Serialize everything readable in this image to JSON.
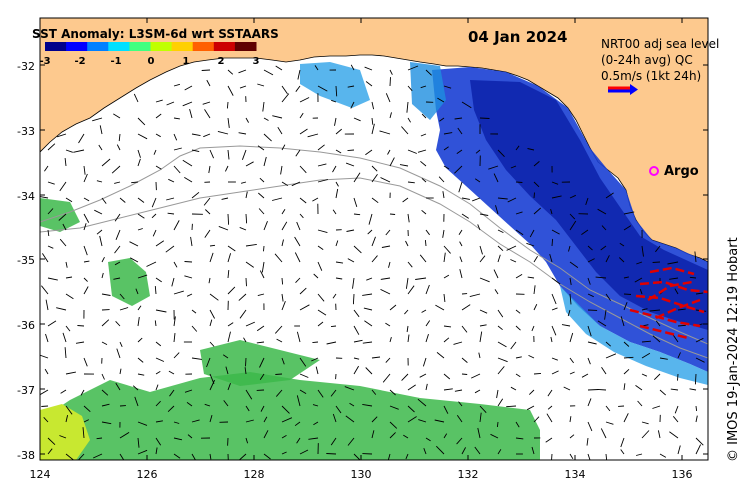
{
  "title": "SST Anomaly: L3SM-6d wrt SSTAARS",
  "date": "04 Jan 2024",
  "colorbar": {
    "ticks": [
      "-3",
      "-2",
      "-1",
      "0",
      "1",
      "2",
      "3"
    ],
    "colors": [
      "#00008b",
      "#0000ff",
      "#0080ff",
      "#00e0ff",
      "#40ff80",
      "#c0ff00",
      "#ffd000",
      "#ff6000",
      "#cc0000",
      "#600000"
    ]
  },
  "legend": {
    "line1": "NRT00 adj sea level",
    "line2": "(0-24h avg) QC",
    "line3": "0.5m/s (1kt 24h)",
    "argo_label": "Argo"
  },
  "axes": {
    "x_ticks": [
      "124",
      "126",
      "128",
      "130",
      "132",
      "134",
      "136"
    ],
    "y_ticks": [
      "-32",
      "-33",
      "-34",
      "-35",
      "-36",
      "-37",
      "-38"
    ]
  },
  "credit": "© IMOS 19-Jan-2024 12:19 Hobart",
  "colors": {
    "land": "#fdc98e",
    "cold_anomaly": "#1a3fd4",
    "warm_anomaly": "#3cb84a",
    "drifter": "#e00000",
    "argo": "#ff00ff"
  }
}
